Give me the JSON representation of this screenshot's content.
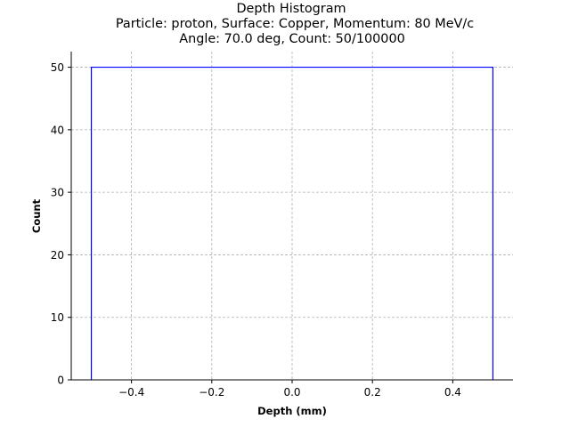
{
  "chart_data": {
    "type": "step",
    "title": [
      "Depth Histogram",
      "Particle: proton, Surface: Copper, Momentum: 80 MeV/c",
      "Angle: 70.0 deg, Count: 50/100000"
    ],
    "xlabel": "Depth (mm)",
    "ylabel": "Count",
    "xlim": [
      -0.55,
      0.55
    ],
    "ylim": [
      0,
      52.5
    ],
    "xticks": [
      -0.4,
      -0.2,
      0.0,
      0.2,
      0.4
    ],
    "xtick_labels": [
      "−0.4",
      "−0.2",
      "0.0",
      "0.2",
      "0.4"
    ],
    "yticks": [
      0,
      10,
      20,
      30,
      40,
      50
    ],
    "ytick_labels": [
      "0",
      "10",
      "20",
      "30",
      "40",
      "50"
    ],
    "grid": true,
    "bins": [
      {
        "x0": -0.5,
        "x1": 0.5,
        "count": 50
      }
    ],
    "color": "#0000ff"
  }
}
